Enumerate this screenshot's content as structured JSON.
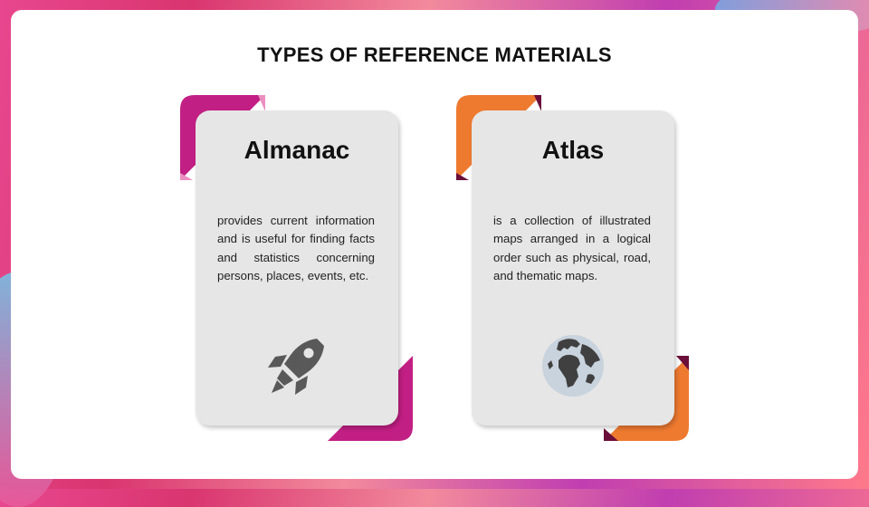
{
  "slide": {
    "title": "TYPES OF REFERENCE MATERIALS"
  },
  "cards": [
    {
      "heading": "Almanac",
      "body": "provides current information and is useful for finding facts and statistics concerning persons, places, events, etc.",
      "icon": "rocket-icon",
      "accent": "#c21f84",
      "accent_light": "#ea8fc0"
    },
    {
      "heading": "Atlas",
      "body": "is a collection of illustrated maps arranged in a logical order such as physical, road, and thematic maps.",
      "icon": "globe-icon",
      "accent": "#ee7a30",
      "accent_dark": "#6b0f3a"
    }
  ]
}
